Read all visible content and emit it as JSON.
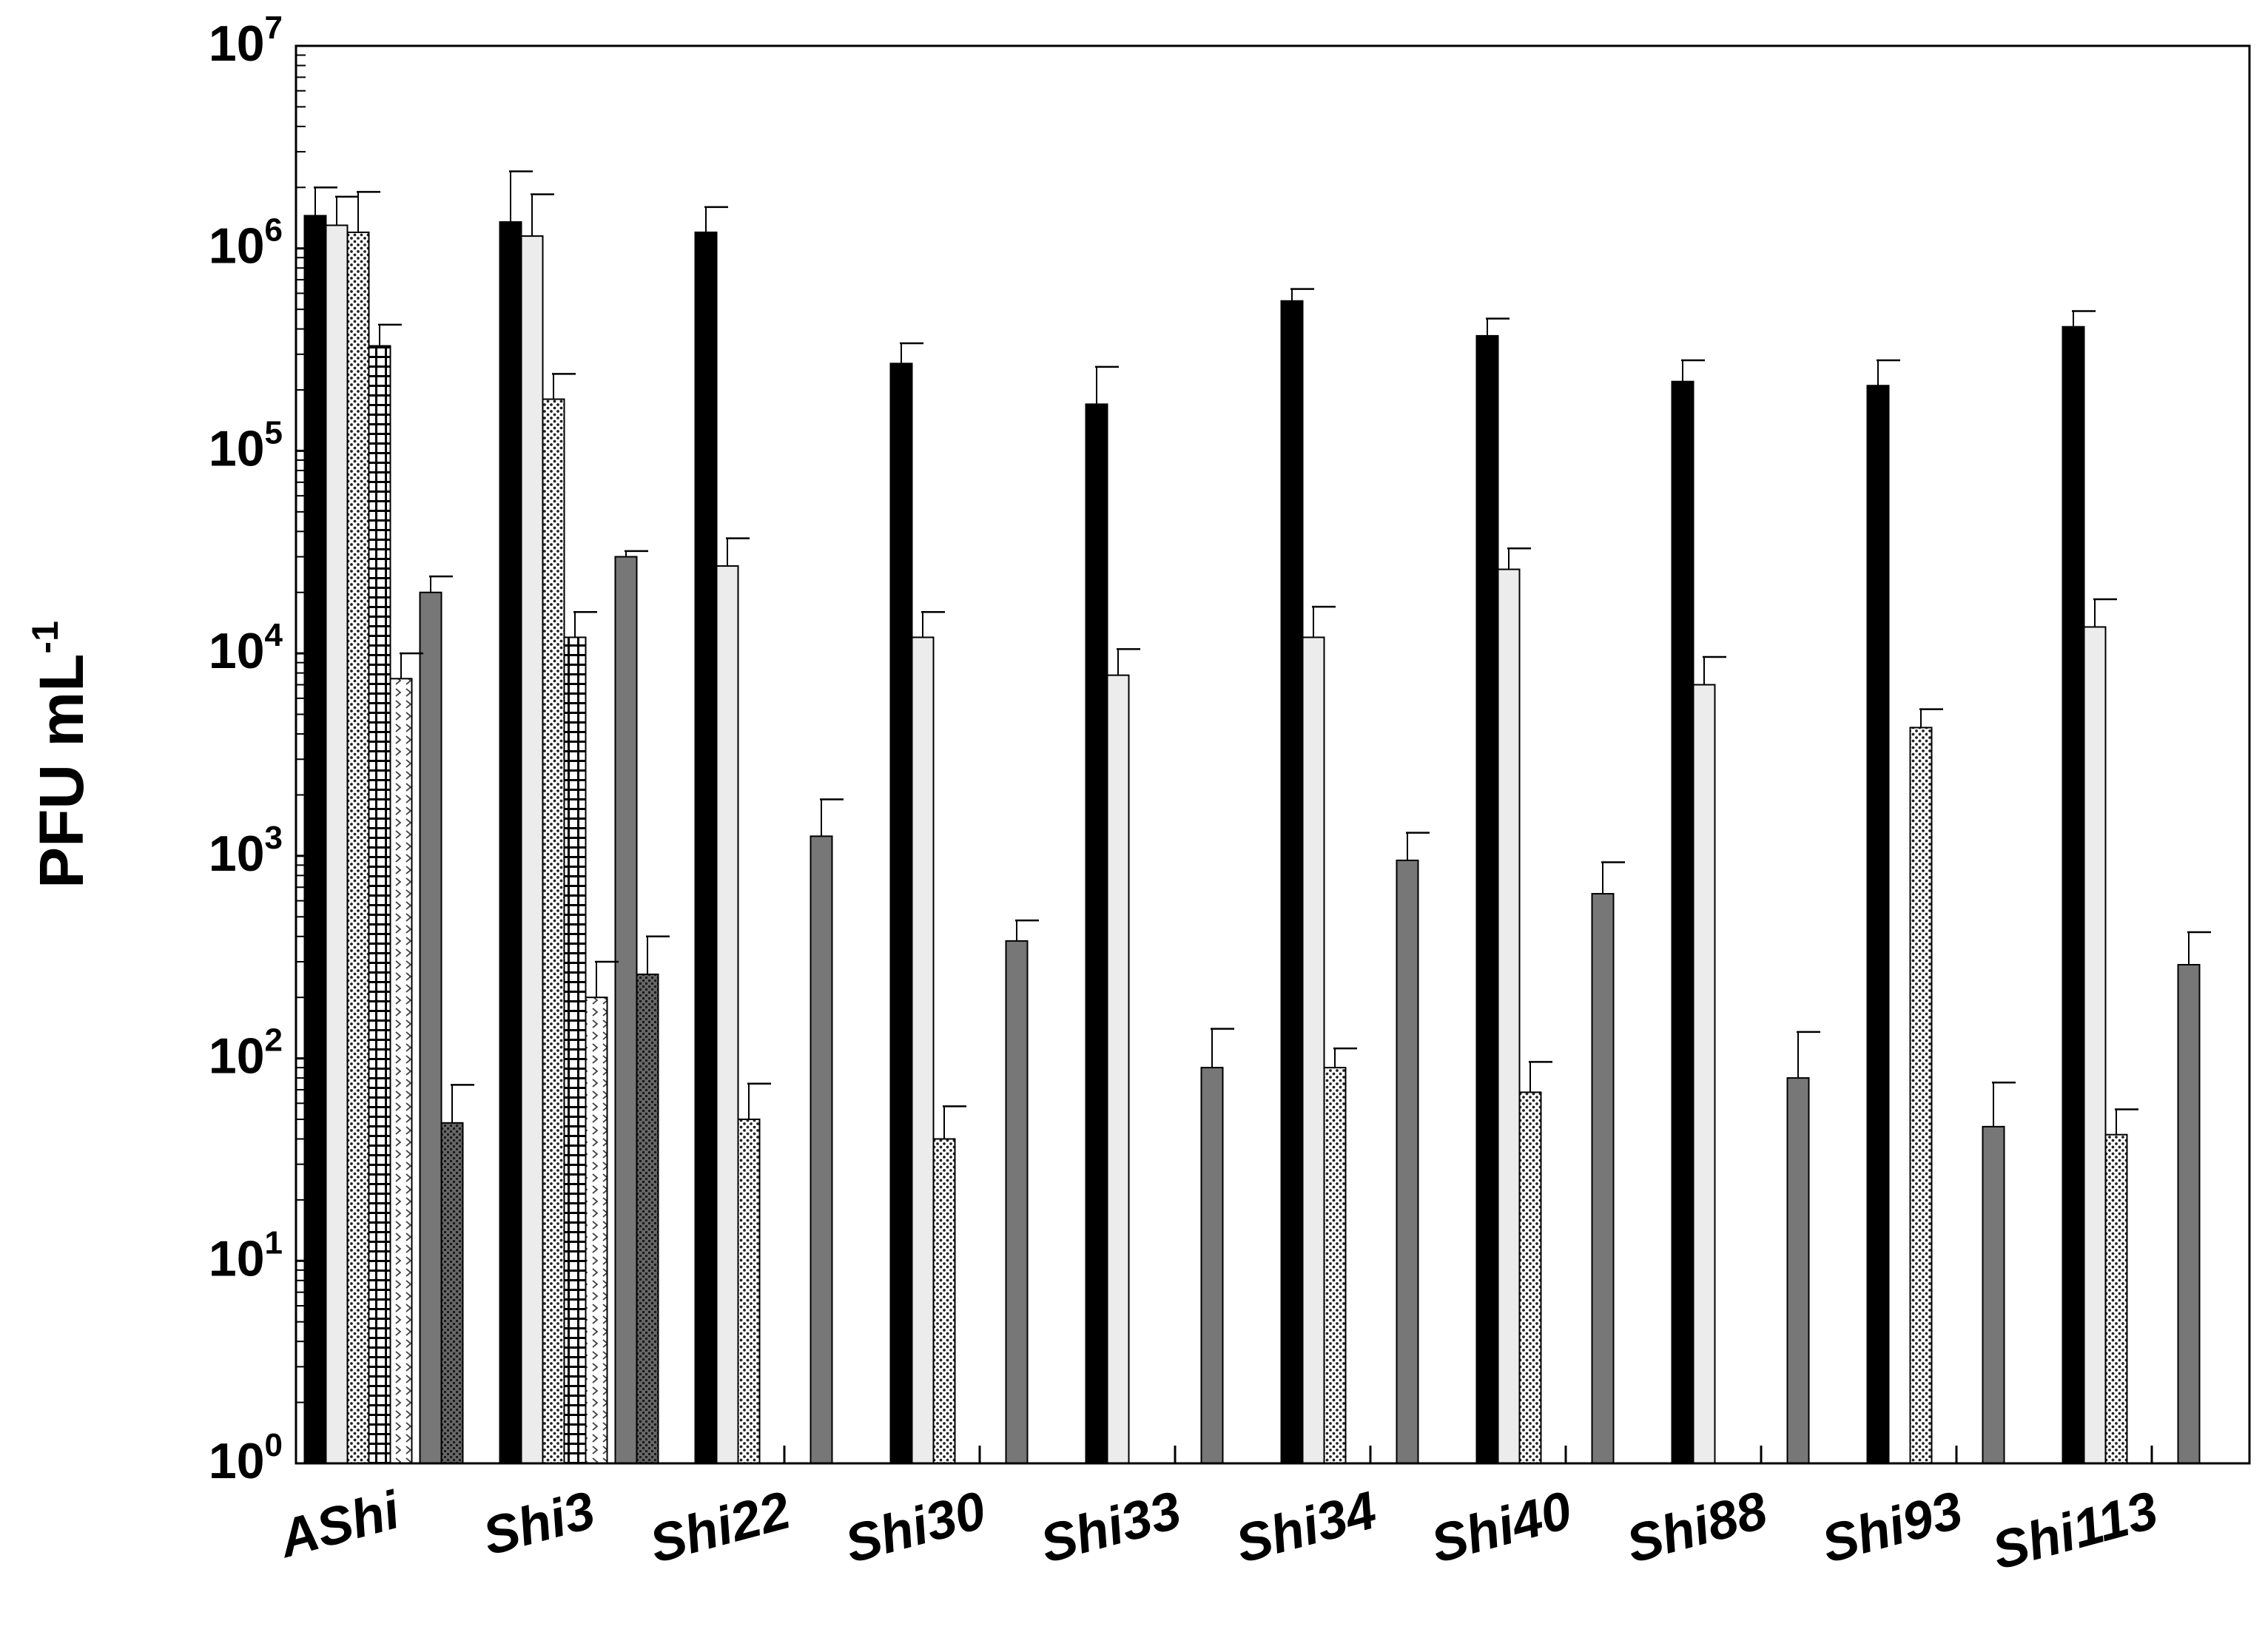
{
  "chart_data": {
    "type": "bar",
    "yscale": "log",
    "ylim": [
      1,
      10000000
    ],
    "ylabel": {
      "base": "PFU mL",
      "superscript": "-1"
    },
    "yticks": [
      {
        "base": "10",
        "exp": "0"
      },
      {
        "base": "10",
        "exp": "1"
      },
      {
        "base": "10",
        "exp": "2"
      },
      {
        "base": "10",
        "exp": "3"
      },
      {
        "base": "10",
        "exp": "4"
      },
      {
        "base": "10",
        "exp": "5"
      },
      {
        "base": "10",
        "exp": "6"
      },
      {
        "base": "10",
        "exp": "7"
      }
    ],
    "categories": [
      "AShi",
      "Shi3",
      "Shi22",
      "Shi30",
      "Shi33",
      "Shi34",
      "Shi40",
      "Shi88",
      "Shi93",
      "Shi113"
    ],
    "series": [
      {
        "pattern": "solid-black",
        "values": [
          1450000,
          1350000,
          1200000,
          270000,
          170000,
          550000,
          370000,
          220000,
          210000,
          410000
        ],
        "errors": [
          550000,
          1050000,
          400000,
          70000,
          90000,
          80000,
          80000,
          60000,
          70000,
          80000
        ]
      },
      {
        "pattern": "light-gray",
        "values": [
          1300000,
          1150000,
          27000,
          12000,
          7800,
          12000,
          26000,
          7000,
          null,
          13500
        ],
        "errors": [
          500000,
          700000,
          10000,
          4000,
          2700,
          5000,
          7000,
          2600,
          null,
          5000
        ]
      },
      {
        "pattern": "dots",
        "values": [
          1200000,
          180000,
          50,
          40,
          null,
          90,
          68,
          null,
          4300,
          42
        ],
        "errors": [
          700000,
          60000,
          25,
          18,
          null,
          22,
          28,
          null,
          1000,
          14
        ]
      },
      {
        "pattern": "grid",
        "values": [
          330000,
          12000,
          null,
          null,
          null,
          null,
          null,
          null,
          null,
          null
        ],
        "errors": [
          90000,
          4000,
          null,
          null,
          null,
          null,
          null,
          null,
          null,
          null
        ]
      },
      {
        "pattern": "chevrons",
        "values": [
          7500,
          200,
          null,
          null,
          null,
          null,
          null,
          null,
          null,
          null
        ],
        "errors": [
          2500,
          100,
          null,
          null,
          null,
          null,
          null,
          null,
          null,
          null
        ]
      },
      {
        "pattern": "dark-gray",
        "values": [
          20000,
          30000,
          1250,
          380,
          90,
          950,
          650,
          80,
          46,
          290
        ],
        "errors": [
          4000,
          2000,
          650,
          100,
          50,
          350,
          280,
          55,
          30,
          130
        ]
      },
      {
        "pattern": "dark-checker",
        "values": [
          48,
          260,
          null,
          null,
          null,
          null,
          null,
          null,
          null,
          null
        ],
        "errors": [
          26,
          140,
          null,
          null,
          null,
          null,
          null,
          null,
          null,
          null
        ]
      }
    ],
    "colors": {
      "solid-black": "#000000",
      "light-gray": "#ececec",
      "dark-gray": "#777777",
      "axis": "#000000"
    }
  }
}
